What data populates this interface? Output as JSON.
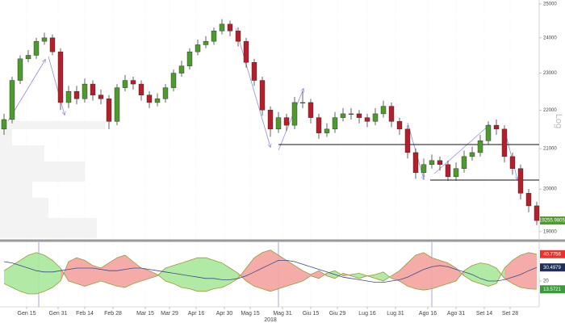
{
  "chart_data": [
    {
      "type": "candlestick",
      "open": [
        21500,
        21750,
        22800,
        23400,
        23500,
        23900,
        24000,
        23600,
        22200,
        22500,
        22300,
        22700,
        22400,
        22300,
        21700,
        22600,
        22800,
        22700,
        22400,
        22200,
        22300,
        22600,
        23000,
        23200,
        23600,
        23800,
        23900,
        24200,
        24400,
        24200,
        23900,
        23300,
        22800,
        22000,
        21500,
        21800,
        21600,
        22200,
        22200,
        21800,
        21400,
        21500,
        21800,
        21900,
        21900,
        21800,
        21700,
        21900,
        22100,
        21700,
        21500,
        20900,
        20400,
        20600,
        20700,
        20600,
        20300,
        20500,
        20800,
        20900,
        21200,
        21600,
        21500,
        20800,
        20500,
        19900,
        19600
      ],
      "high": [
        21900,
        22900,
        23500,
        23650,
        24000,
        24150,
        24100,
        23700,
        22650,
        22650,
        22850,
        22800,
        22550,
        22400,
        22700,
        22950,
        22900,
        22800,
        22500,
        22450,
        22700,
        23100,
        23350,
        23700,
        23950,
        24050,
        24300,
        24550,
        24500,
        24300,
        24000,
        23400,
        22900,
        22100,
        21950,
        21900,
        22350,
        22500,
        22300,
        21900,
        21650,
        21950,
        22050,
        22050,
        22000,
        21900,
        22050,
        22250,
        22200,
        21800,
        21600,
        21000,
        20750,
        20850,
        20800,
        20700,
        20650,
        20950,
        21050,
        21350,
        21700,
        21750,
        21600,
        20900,
        20600,
        20000,
        19700
      ],
      "low": [
        21350,
        21650,
        22700,
        23300,
        23400,
        23800,
        23500,
        22000,
        22050,
        22150,
        22200,
        22250,
        22150,
        21500,
        21600,
        22500,
        22550,
        22250,
        22050,
        22100,
        22200,
        22500,
        22900,
        23100,
        23500,
        23700,
        23800,
        24100,
        24050,
        23750,
        23150,
        22650,
        21850,
        21300,
        21400,
        21450,
        21500,
        22050,
        21650,
        21250,
        21300,
        21400,
        21700,
        21750,
        21650,
        21550,
        21600,
        21800,
        21550,
        21350,
        20750,
        20250,
        20300,
        20500,
        20450,
        20200,
        20200,
        20400,
        20700,
        20800,
        21100,
        21350,
        20650,
        20350,
        19750,
        19450,
        19150
      ],
      "close": [
        21750,
        22800,
        23400,
        23500,
        23900,
        24000,
        23600,
        22200,
        22500,
        22300,
        22700,
        22400,
        22300,
        21700,
        22600,
        22800,
        22700,
        22400,
        22200,
        22300,
        22600,
        23000,
        23200,
        23600,
        23800,
        23900,
        24200,
        24400,
        24200,
        23900,
        23300,
        22800,
        22000,
        21500,
        21800,
        21600,
        22200,
        22200,
        21800,
        21400,
        21500,
        21800,
        21900,
        21900,
        21800,
        21700,
        21900,
        22100,
        21700,
        21500,
        20900,
        20400,
        20600,
        20700,
        20600,
        20300,
        20500,
        20800,
        20900,
        21200,
        21600,
        21500,
        20800,
        20500,
        19900,
        19600,
        19255.9805
      ],
      "up_color": "#4f9a2e",
      "down_color": "#b3202c",
      "log_scale": true,
      "y_axis_label": "Log",
      "ylim": [
        18850,
        25120
      ],
      "yticks": [
        25000,
        24000,
        23000,
        22000,
        21000,
        20000,
        19000
      ],
      "xticks": [
        {
          "value": 2.8,
          "label": "Gen 15"
        },
        {
          "value": 6.7,
          "label": "Gen 31"
        },
        {
          "value": 10,
          "label": "Feb 14"
        },
        {
          "value": 13.5,
          "label": "Feb 28"
        },
        {
          "value": 17.5,
          "label": "Mar 15"
        },
        {
          "value": 20.5,
          "label": "Mar 29"
        },
        {
          "value": 23.8,
          "label": "Apr 16"
        },
        {
          "value": 27.3,
          "label": "Apr 30"
        },
        {
          "value": 30.5,
          "label": "Mag 15"
        },
        {
          "value": 34.5,
          "label": "Mag 31"
        },
        {
          "value": 38,
          "label": "Giu 15"
        },
        {
          "value": 41.3,
          "label": "Giu 29"
        },
        {
          "value": 45,
          "label": "Lug 16"
        },
        {
          "value": 48.5,
          "label": "Lug 31"
        },
        {
          "value": 52.5,
          "label": "Ago 16"
        },
        {
          "value": 56,
          "label": "Ago 31"
        },
        {
          "value": 59.5,
          "label": "Set 14"
        },
        {
          "value": 62.7,
          "label": "Set 28"
        }
      ],
      "year_label": "2018",
      "grid": true
    },
    {
      "type": "line",
      "series": [
        {
          "color": "#e8322b",
          "values": [
            18,
            15,
            12,
            10,
            10,
            12,
            15,
            20,
            35,
            38,
            36,
            32,
            30,
            34,
            38,
            40,
            35,
            30,
            28,
            25,
            20,
            18,
            15,
            14,
            12,
            12,
            14,
            15,
            18,
            22,
            30,
            38,
            42,
            44,
            40,
            36,
            32,
            28,
            25,
            28,
            24,
            22,
            26,
            24,
            22,
            24,
            22,
            20,
            24,
            28,
            34,
            40,
            42,
            38,
            36,
            34,
            30,
            24,
            20,
            18,
            16,
            18,
            30,
            36,
            40,
            42,
            40.7756
          ]
        },
        {
          "color": "#3c9a3c",
          "values": [
            28,
            32,
            36,
            40,
            42,
            40,
            36,
            30,
            20,
            18,
            16,
            18,
            20,
            18,
            16,
            15,
            18,
            20,
            22,
            24,
            30,
            32,
            34,
            36,
            38,
            38,
            36,
            34,
            30,
            26,
            20,
            16,
            14,
            12,
            14,
            16,
            18,
            20,
            24,
            22,
            26,
            28,
            24,
            25,
            26,
            24,
            25,
            27,
            22,
            20,
            16,
            14,
            13,
            14,
            16,
            18,
            20,
            28,
            32,
            34,
            33,
            30,
            22,
            18,
            15,
            14,
            13.5721
          ]
        },
        {
          "color": "#1f2f5a",
          "values": [
            35,
            34,
            32,
            30,
            28,
            27,
            27,
            28,
            29,
            30,
            30,
            30,
            29,
            28,
            28,
            29,
            30,
            30,
            29,
            28,
            27,
            26,
            25,
            24,
            23,
            22,
            22,
            21,
            21,
            22,
            24,
            27,
            30,
            33,
            36,
            36,
            35,
            33,
            31,
            29,
            27,
            25,
            23,
            22,
            21,
            20,
            19,
            19,
            20,
            21,
            23,
            26,
            29,
            31,
            32,
            31,
            29,
            27,
            25,
            22,
            20,
            20,
            21,
            23,
            25,
            28,
            30.4979
          ]
        }
      ],
      "ylim": [
        0,
        50
      ],
      "yticks": [
        20
      ]
    }
  ]
}
